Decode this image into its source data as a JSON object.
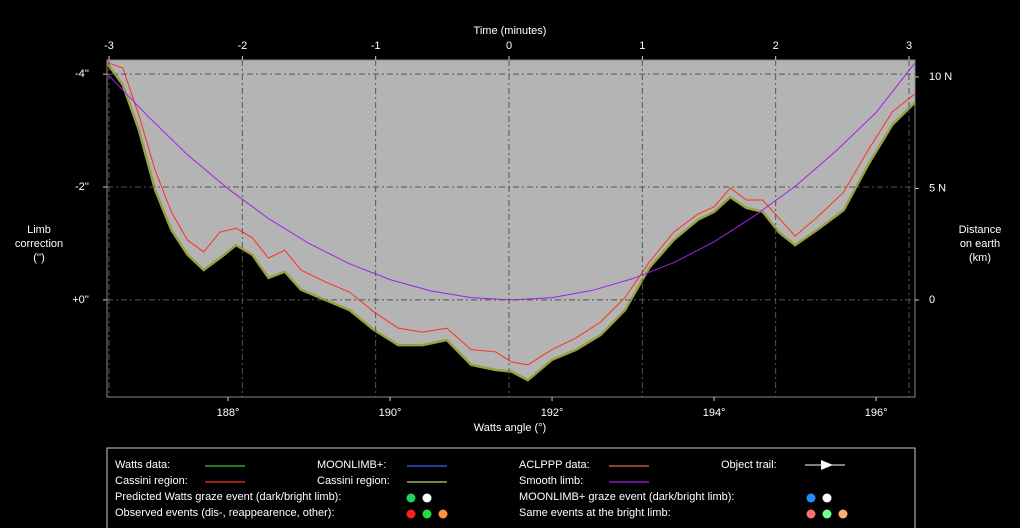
{
  "chart_data": {
    "type": "line",
    "x_label": "Watts angle (°)",
    "x2_label": "Time (minutes)",
    "y_label": [
      "Limb",
      "correction",
      "('')"
    ],
    "y2_label": [
      "Distance",
      "on earth",
      "(km)"
    ],
    "xlim": [
      186.506,
      196.48
    ],
    "xticks": [
      {
        "value": 188,
        "label": "188°"
      },
      {
        "value": 190,
        "label": "190°"
      },
      {
        "value": 192,
        "label": "192°"
      },
      {
        "value": 194,
        "label": "194°"
      },
      {
        "value": 196,
        "label": "196°"
      }
    ],
    "x2lim": [
      -3.015,
      3.045
    ],
    "x2ticks": [
      -3,
      -2,
      -1,
      0,
      1,
      2,
      3
    ],
    "ylim": [
      1.72,
      -4.25
    ],
    "yticks": [
      {
        "value": -4,
        "label": "-4''"
      },
      {
        "value": -2,
        "label": "-2''"
      },
      {
        "value": 0,
        "label": "+0''"
      }
    ],
    "y2lim": [
      -4.35,
      10.76
    ],
    "y2ticks": [
      {
        "value": 10,
        "label": "10 N"
      },
      {
        "value": 5,
        "label": "5 N"
      },
      0
    ],
    "grid": true,
    "series": [
      {
        "color": "#9aa040",
        "fill": "#b4b4b4",
        "x": [
          186.5,
          186.7,
          186.9,
          187.1,
          187.3,
          187.5,
          187.7,
          187.9,
          188.1,
          188.3,
          188.5,
          188.7,
          188.9,
          189.2,
          189.5,
          189.8,
          190.1,
          190.4,
          190.7,
          191.0,
          191.3,
          191.5,
          191.7,
          192.0,
          192.3,
          192.6,
          192.9,
          193.2,
          193.5,
          193.8,
          194.0,
          194.2,
          194.4,
          194.6,
          194.8,
          195.0,
          195.3,
          195.6,
          195.9,
          196.2,
          196.48
        ],
        "values": [
          -4.21,
          -3.81,
          -3.01,
          -1.95,
          -1.24,
          -0.8,
          -0.53,
          -0.74,
          -0.97,
          -0.8,
          -0.39,
          -0.5,
          -0.18,
          0,
          0.18,
          0.53,
          0.8,
          0.8,
          0.71,
          1.15,
          1.24,
          1.27,
          1.42,
          1.06,
          0.88,
          0.62,
          0.18,
          -0.57,
          -1.06,
          -1.42,
          -1.56,
          -1.82,
          -1.63,
          -1.56,
          -1.2,
          -0.97,
          -1.27,
          -1.59,
          -2.39,
          -3.1,
          -3.5
        ]
      },
      {
        "color": "#ff3020",
        "x": [
          186.5,
          186.7,
          186.9,
          187.1,
          187.3,
          187.5,
          187.7,
          187.9,
          188.1,
          188.3,
          188.5,
          188.7,
          188.9,
          189.2,
          189.5,
          189.8,
          190.1,
          190.4,
          190.7,
          191.0,
          191.3,
          191.5,
          191.7,
          192.0,
          192.3,
          192.6,
          192.9,
          193.2,
          193.5,
          193.8,
          194.0,
          194.2,
          194.4,
          194.6,
          194.8,
          195.0,
          195.3,
          195.6,
          195.9,
          196.2,
          196.48
        ],
        "values": [
          -4.21,
          -4.11,
          -3.27,
          -2.3,
          -1.56,
          -1.06,
          -0.85,
          -1.2,
          -1.27,
          -1.1,
          -0.74,
          -0.88,
          -0.53,
          -0.32,
          -0.14,
          0.21,
          0.5,
          0.57,
          0.5,
          0.88,
          0.92,
          1.1,
          1.15,
          0.88,
          0.67,
          0.39,
          -0.04,
          -0.67,
          -1.2,
          -1.52,
          -1.65,
          -1.98,
          -1.77,
          -1.77,
          -1.45,
          -1.13,
          -1.5,
          -1.91,
          -2.65,
          -3.33,
          -3.65
        ]
      },
      {
        "color": "#a020f0",
        "x": [
          186.5,
          187,
          187.5,
          188,
          188.5,
          189,
          189.5,
          190,
          190.5,
          191,
          191.5,
          192,
          192.5,
          193,
          193.5,
          194,
          194.5,
          195,
          195.5,
          196,
          196.48
        ],
        "values": [
          -4.02,
          -3.27,
          -2.57,
          -1.97,
          -1.44,
          -1.0,
          -0.64,
          -0.36,
          -0.16,
          -0.04,
          0,
          -0.04,
          -0.17,
          -0.38,
          -0.66,
          -1.03,
          -1.49,
          -2.01,
          -2.63,
          -3.32,
          -4.2
        ]
      }
    ],
    "legend": [
      {
        "label": "Watts data:",
        "kind": "line",
        "color": "#40c040"
      },
      {
        "label": "MOONLIMB+:",
        "kind": "line",
        "color": "#4060ff"
      },
      {
        "label": "ACLPPP data:",
        "kind": "line",
        "color": "#e07050"
      },
      {
        "label": "Object trail:",
        "kind": "arrow",
        "color": "#ffffff"
      },
      {
        "label": "Cassini region:",
        "kind": "line",
        "color": "#ff3020"
      },
      {
        "label": "Cassini region:",
        "kind": "line",
        "color": "#c8c870"
      },
      {
        "label": "Smooth limb:",
        "kind": "line",
        "color": "#a020f0"
      },
      {
        "label": "Predicted Watts graze event (dark/bright limb):",
        "kind": "dots",
        "colors": [
          "#20d060",
          "#ffffff"
        ]
      },
      {
        "label": "MOONLIMB+ graze event (dark/bright limb):",
        "kind": "dots",
        "colors": [
          "#2090ff",
          "#ffffff"
        ]
      },
      {
        "label": "Observed events (dis-, reappearence, other):",
        "kind": "dots",
        "colors": [
          "#ff2020",
          "#20e040",
          "#ff9040"
        ]
      },
      {
        "label": "Same events at the bright limb:",
        "kind": "dots",
        "colors": [
          "#ff7070",
          "#70ff90",
          "#ffb070"
        ]
      }
    ]
  }
}
